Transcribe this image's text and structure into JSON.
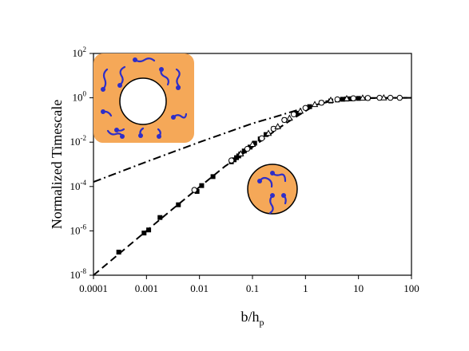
{
  "chart_data": {
    "type": "scatter",
    "title": "",
    "xlabel": "b/h",
    "xlabel_subscript": "p",
    "ylabel": "Normalized Timescale",
    "xscale": "log",
    "yscale": "log",
    "xlim": [
      0.0001,
      100
    ],
    "ylim": [
      1e-08,
      100
    ],
    "x_ticks": [
      {
        "value": 0.0001,
        "label": "0.0001"
      },
      {
        "value": 0.001,
        "label": "0.001"
      },
      {
        "value": 0.01,
        "label": "0.01"
      },
      {
        "value": 0.1,
        "label": "0.1"
      },
      {
        "value": 1,
        "label": "1"
      },
      {
        "value": 10,
        "label": "10"
      },
      {
        "value": 100,
        "label": "100"
      }
    ],
    "y_ticks": [
      {
        "value": 1e-08,
        "base": "10",
        "exp": "-8"
      },
      {
        "value": 1e-06,
        "base": "10",
        "exp": "-6"
      },
      {
        "value": 0.0001,
        "base": "10",
        "exp": "-4"
      },
      {
        "value": 0.01,
        "base": "10",
        "exp": "-2"
      },
      {
        "value": 1,
        "base": "10",
        "exp": "0"
      },
      {
        "value": 100,
        "base": "10",
        "exp": "2"
      }
    ],
    "grid": false,
    "legend": "none",
    "series": [
      {
        "style": "dashed-line",
        "color": "#000000",
        "x": [
          0.0001,
          0.0003,
          0.001,
          0.003,
          0.01,
          0.03,
          0.1,
          0.3,
          0.6,
          1,
          1.5,
          2.5,
          5,
          10,
          100
        ],
        "y": [
          1e-08,
          9e-08,
          1e-06,
          9e-06,
          9.5e-05,
          0.0008,
          0.006,
          0.04,
          0.12,
          0.25,
          0.45,
          0.7,
          0.9,
          0.98,
          1
        ]
      },
      {
        "style": "dash-dot-line",
        "color": "#000000",
        "x": [
          0.0001,
          0.001,
          0.01,
          0.1,
          0.3,
          0.6,
          1,
          2,
          3,
          5,
          10,
          100
        ],
        "y": [
          0.00016,
          0.0013,
          0.01,
          0.07,
          0.15,
          0.25,
          0.35,
          0.55,
          0.7,
          0.85,
          0.95,
          1
        ]
      },
      {
        "style": "filled-square-markers",
        "color": "#000000",
        "x": [
          0.0003,
          0.0009,
          0.0011,
          0.0018,
          0.004,
          0.009,
          0.011,
          0.018,
          0.04,
          0.045,
          0.05,
          0.055,
          0.06,
          0.07,
          0.09,
          0.11,
          0.14,
          0.18,
          0.25,
          0.4,
          0.7,
          1.2,
          2,
          3,
          4,
          5,
          6,
          7,
          8,
          10,
          15
        ],
        "y": [
          1.1e-07,
          8e-07,
          1.1e-06,
          4e-06,
          1.5e-05,
          6e-05,
          0.00011,
          0.00028,
          0.0013,
          0.0016,
          0.002,
          0.0024,
          0.0029,
          0.004,
          0.006,
          0.009,
          0.014,
          0.022,
          0.04,
          0.1,
          0.2,
          0.4,
          0.6,
          0.72,
          0.8,
          0.86,
          0.88,
          0.9,
          0.92,
          0.94,
          0.97
        ]
      },
      {
        "style": "open-circle-markers",
        "color": "#000000",
        "x": [
          0.008,
          0.04,
          0.08,
          0.15,
          0.25,
          0.4,
          0.6,
          1,
          2,
          4,
          8,
          15,
          25,
          40,
          60
        ],
        "y": [
          7e-05,
          0.0015,
          0.005,
          0.015,
          0.04,
          0.1,
          0.18,
          0.35,
          0.6,
          0.85,
          0.95,
          0.98,
          1,
          1,
          1
        ]
      },
      {
        "style": "open-triangle-markers",
        "color": "#000000",
        "x": [
          0.06,
          0.1,
          0.2,
          0.3,
          0.5,
          0.8,
          1.5,
          3,
          6,
          12,
          30
        ],
        "y": [
          0.003,
          0.008,
          0.025,
          0.05,
          0.12,
          0.25,
          0.5,
          0.78,
          0.92,
          0.98,
          1
        ]
      }
    ],
    "insets": [
      {
        "description": "square with central void and surface-anchored chains",
        "fill": "#f5a858",
        "chain_color": "#2e2ec8"
      },
      {
        "description": "small sphere with surface-anchored chains",
        "fill": "#f5a858",
        "chain_color": "#2e2ec8"
      }
    ]
  }
}
